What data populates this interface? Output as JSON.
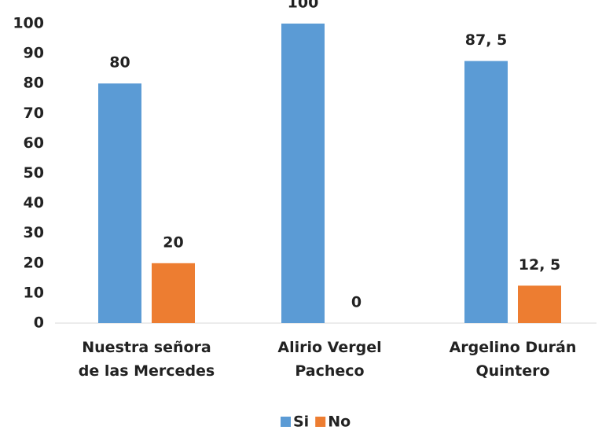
{
  "chart_data": {
    "type": "bar",
    "categories": [
      "Nuestra señora\nde las Mercedes",
      "Alirio Vergel\nPacheco",
      "Argelino Durán\nQuintero"
    ],
    "series": [
      {
        "name": "Si",
        "color": "#5b9bd5",
        "values": [
          80,
          100,
          87.5
        ],
        "value_labels": [
          "80",
          "100",
          "87, 5"
        ]
      },
      {
        "name": "No",
        "color": "#ed7d31",
        "values": [
          20,
          0,
          12.5
        ],
        "value_labels": [
          "20",
          "0",
          "12, 5"
        ]
      }
    ],
    "ylim": [
      0,
      100
    ],
    "yticks": [
      0,
      10,
      20,
      30,
      40,
      50,
      60,
      70,
      80,
      90,
      100
    ],
    "grid": false,
    "legend": "bottom"
  }
}
